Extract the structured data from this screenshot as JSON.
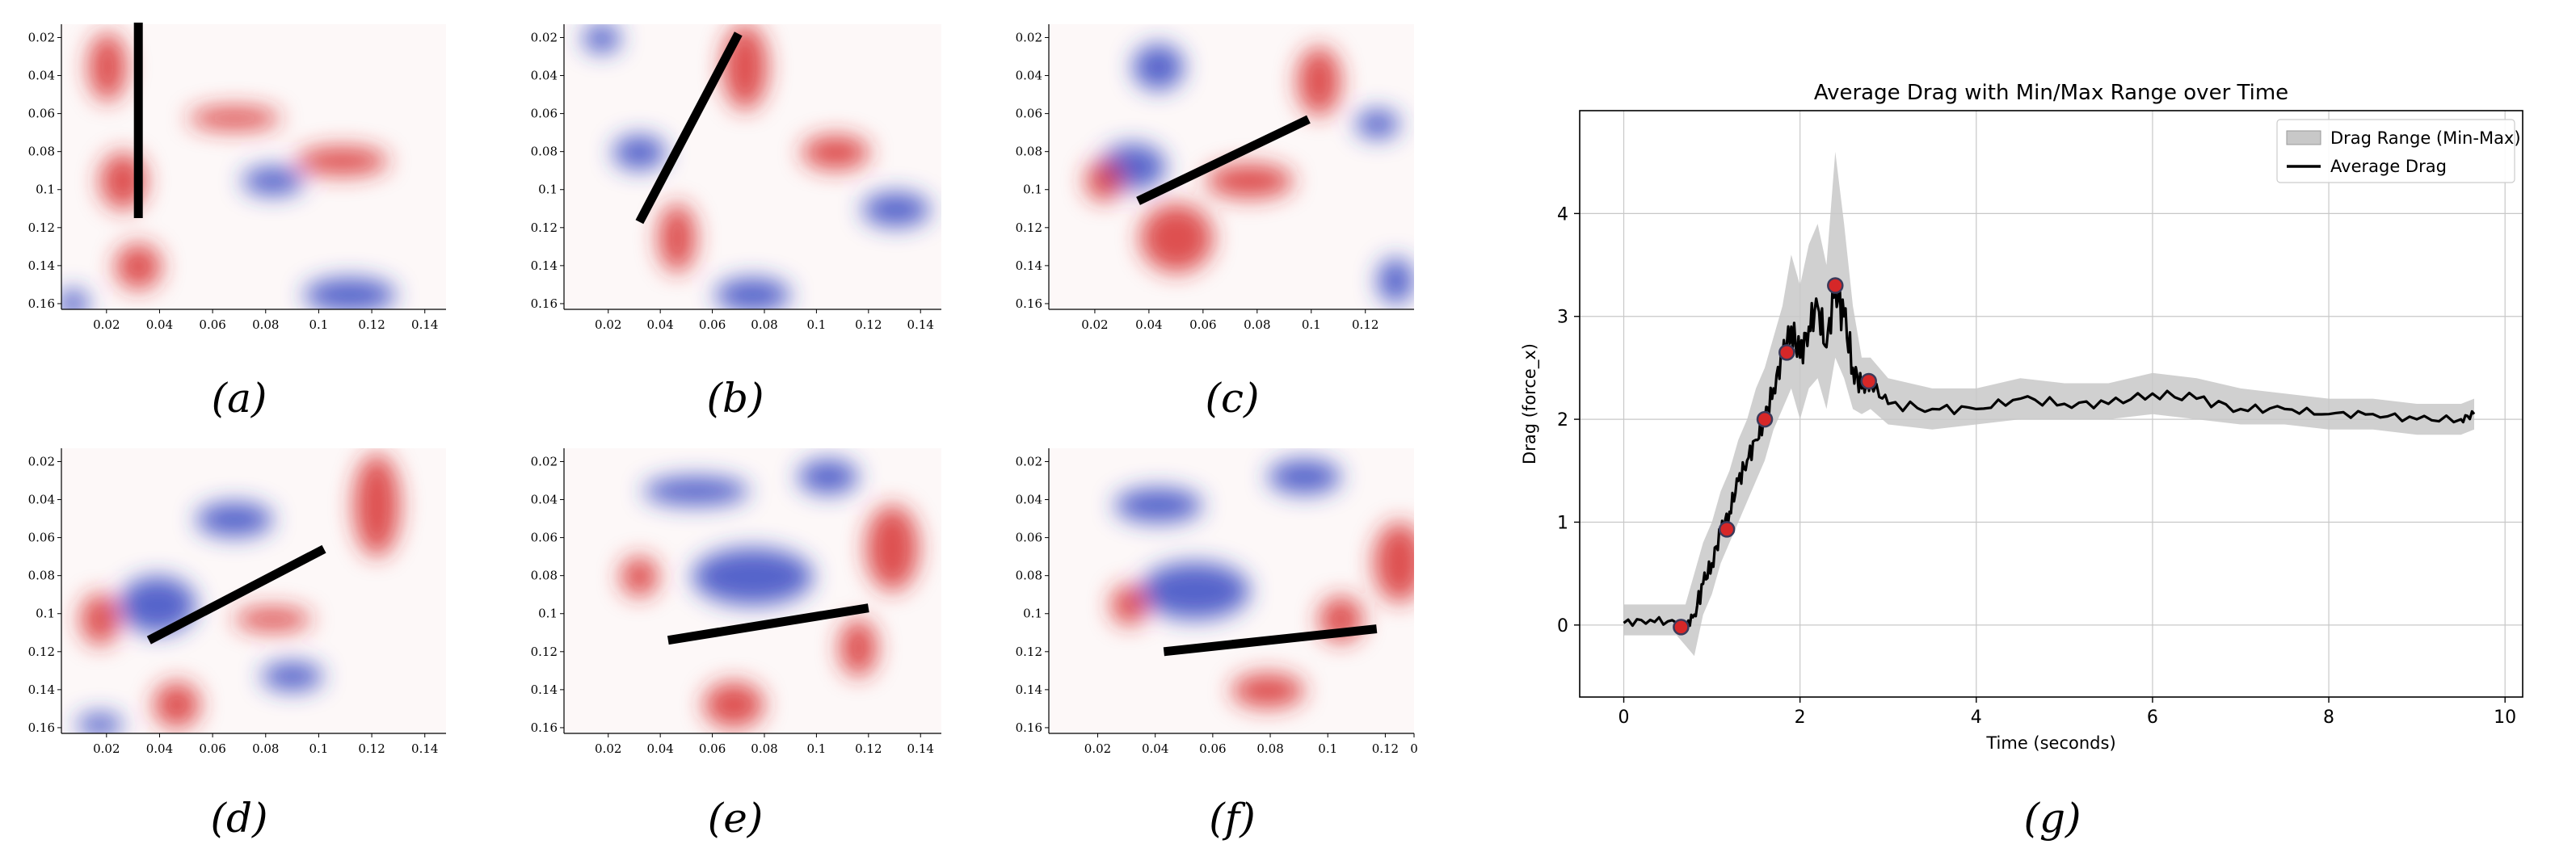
{
  "panels": [
    {
      "caption": "(a)",
      "xticks": [
        "0.02",
        "0.04",
        "0.06",
        "0.08",
        "0.1",
        "0.12",
        "0.14"
      ],
      "yticks": [
        "0.02",
        "0.04",
        "0.06",
        "0.08",
        "0.1",
        "0.12",
        "0.14",
        "0.16"
      ],
      "line": {
        "x1": 0.032,
        "y1": 0.0,
        "x2": 0.032,
        "y2": 0.115
      }
    },
    {
      "caption": "(b)",
      "xticks": [
        "0.02",
        "0.04",
        "0.06",
        "0.08",
        "0.1",
        "0.12",
        "0.14"
      ],
      "yticks": [
        "0.02",
        "0.04",
        "0.06",
        "0.08",
        "0.1",
        "0.12",
        "0.14",
        "0.16"
      ],
      "line": {
        "x1": 0.032,
        "y1": 0.117,
        "x2": 0.07,
        "y2": 0.018
      }
    },
    {
      "caption": "(c)",
      "xticks": [
        "0.02",
        "0.04",
        "0.06",
        "0.08",
        "0.1",
        "0.12"
      ],
      "yticks": [
        "0.02",
        "0.04",
        "0.06",
        "0.08",
        "0.1",
        "0.12",
        "0.14",
        "0.16"
      ],
      "line": {
        "x1": 0.036,
        "y1": 0.106,
        "x2": 0.099,
        "y2": 0.063
      }
    },
    {
      "caption": "(d)",
      "xticks": [
        "0.02",
        "0.04",
        "0.06",
        "0.08",
        "0.1",
        "0.12",
        "0.14"
      ],
      "yticks": [
        "0.02",
        "0.04",
        "0.06",
        "0.08",
        "0.1",
        "0.12",
        "0.14",
        "0.16"
      ],
      "line": {
        "x1": 0.036,
        "y1": 0.114,
        "x2": 0.102,
        "y2": 0.066
      }
    },
    {
      "caption": "(e)",
      "xticks": [
        "0.02",
        "0.04",
        "0.06",
        "0.08",
        "0.1",
        "0.12",
        "0.14"
      ],
      "yticks": [
        "0.02",
        "0.04",
        "0.06",
        "0.08",
        "0.1",
        "0.12",
        "0.14",
        "0.16"
      ],
      "line": {
        "x1": 0.043,
        "y1": 0.114,
        "x2": 0.12,
        "y2": 0.097
      }
    },
    {
      "caption": "(f)",
      "xticks": [
        "0.02",
        "0.04",
        "0.06",
        "0.08",
        "0.1",
        "0.12",
        "0"
      ],
      "yticks": [
        "0.02",
        "0.04",
        "0.06",
        "0.08",
        "0.1",
        "0.12",
        "0.14",
        "0.16"
      ],
      "line": {
        "x1": 0.043,
        "y1": 0.12,
        "x2": 0.117,
        "y2": 0.108
      }
    }
  ],
  "colors": {
    "positive": "#d62728",
    "negative": "#2c3fbf",
    "marker": "#d62728",
    "band": "#c8c8c8"
  },
  "chart_data": {
    "type": "line",
    "title": "Average Drag with Min/Max Range over Time",
    "xlabel": "Time (seconds)",
    "ylabel": "Drag (force_x)",
    "xlim": [
      -0.5,
      10.2
    ],
    "ylim": [
      -0.7,
      5.0
    ],
    "xticks": [
      0,
      2,
      4,
      6,
      8,
      10
    ],
    "yticks": [
      0,
      1,
      2,
      3,
      4
    ],
    "grid": true,
    "caption": "(g)",
    "legend": {
      "position": "top-right",
      "entries": [
        "Drag Range (Min-Max)",
        "Average Drag"
      ]
    },
    "series": [
      {
        "name": "Average Drag",
        "x": [
          0.0,
          0.3,
          0.6,
          0.7,
          0.8,
          0.9,
          1.0,
          1.1,
          1.2,
          1.3,
          1.4,
          1.5,
          1.6,
          1.7,
          1.8,
          1.9,
          2.0,
          2.1,
          2.2,
          2.3,
          2.4,
          2.5,
          2.6,
          2.7,
          2.8,
          3.0,
          3.5,
          4.0,
          4.5,
          5.0,
          5.5,
          6.0,
          6.5,
          7.0,
          7.5,
          8.0,
          8.5,
          9.0,
          9.5,
          9.65
        ],
        "y": [
          0.02,
          0.05,
          0.02,
          -0.02,
          0.1,
          0.4,
          0.6,
          0.9,
          1.1,
          1.4,
          1.6,
          1.8,
          2.0,
          2.3,
          2.6,
          2.9,
          2.6,
          2.9,
          3.1,
          2.7,
          3.3,
          3.0,
          2.5,
          2.3,
          2.35,
          2.15,
          2.1,
          2.1,
          2.2,
          2.15,
          2.15,
          2.25,
          2.2,
          2.1,
          2.1,
          2.05,
          2.05,
          2.0,
          2.0,
          2.05
        ]
      },
      {
        "name": "Drag Range (Min-Max)",
        "x": [
          0.0,
          0.3,
          0.6,
          0.7,
          0.8,
          0.9,
          1.0,
          1.1,
          1.2,
          1.3,
          1.4,
          1.5,
          1.6,
          1.7,
          1.8,
          1.9,
          2.0,
          2.1,
          2.2,
          2.3,
          2.4,
          2.5,
          2.6,
          2.7,
          2.8,
          3.0,
          3.5,
          4.0,
          4.5,
          5.0,
          5.5,
          6.0,
          6.5,
          7.0,
          7.5,
          8.0,
          8.5,
          9.0,
          9.5,
          9.65
        ],
        "lower": [
          -0.1,
          -0.1,
          -0.1,
          -0.2,
          -0.3,
          0.1,
          0.3,
          0.6,
          0.8,
          1.0,
          1.2,
          1.4,
          1.6,
          1.9,
          2.1,
          2.3,
          2.0,
          2.3,
          2.4,
          2.1,
          2.6,
          2.4,
          2.1,
          2.05,
          2.1,
          1.95,
          1.9,
          1.95,
          2.0,
          2.0,
          2.0,
          2.05,
          2.0,
          1.95,
          1.95,
          1.9,
          1.9,
          1.85,
          1.85,
          1.9
        ],
        "upper": [
          0.2,
          0.2,
          0.2,
          0.2,
          0.5,
          0.8,
          1.0,
          1.3,
          1.5,
          1.8,
          2.0,
          2.3,
          2.5,
          2.8,
          3.1,
          3.6,
          3.3,
          3.7,
          3.9,
          3.5,
          4.6,
          3.9,
          3.1,
          2.6,
          2.6,
          2.4,
          2.3,
          2.3,
          2.4,
          2.35,
          2.35,
          2.45,
          2.4,
          2.3,
          2.25,
          2.2,
          2.2,
          2.15,
          2.15,
          2.2
        ]
      },
      {
        "name": "markers",
        "x": [
          0.65,
          1.17,
          1.6,
          1.85,
          2.4,
          2.78
        ],
        "y": [
          -0.02,
          0.93,
          2.0,
          2.65,
          3.3,
          2.37
        ]
      }
    ]
  }
}
